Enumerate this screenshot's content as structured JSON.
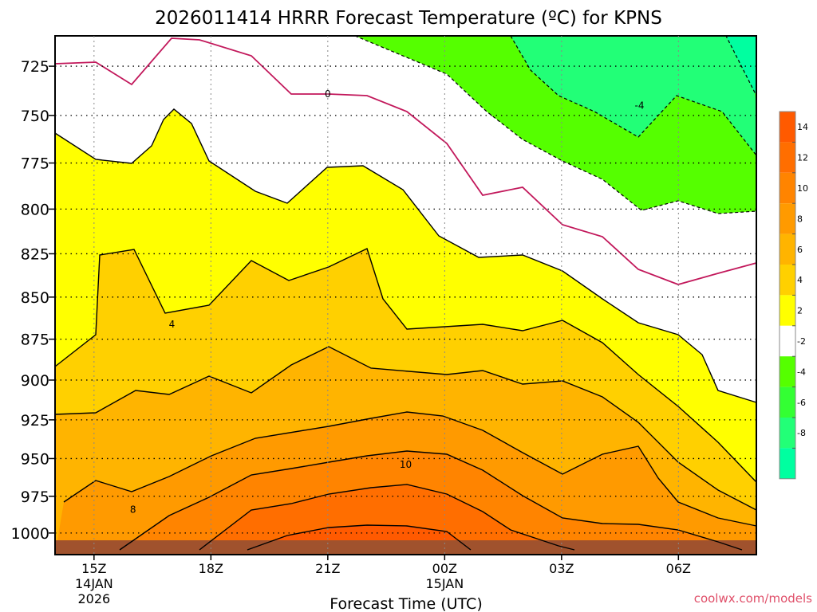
{
  "chart_data": {
    "type": "heatmap",
    "title": "2026011414 HRRR Forecast Temperature (ºC) for KPNS",
    "xlabel": "Forecast Time (UTC)",
    "ylabel": "",
    "credit": "coolwx.com/models",
    "y_ticks": [
      "725",
      "750",
      "775",
      "800",
      "825",
      "850",
      "875",
      "900",
      "925",
      "950",
      "975",
      "1000"
    ],
    "y_scale": "pressure (log)",
    "y_range_hPa": [
      710,
      1015
    ],
    "x_ticks": [
      {
        "hour": 15,
        "label": "15Z",
        "date": "14JAN",
        "year": "2026"
      },
      {
        "hour": 18,
        "label": "18Z",
        "date": "",
        "year": ""
      },
      {
        "hour": 21,
        "label": "21Z",
        "date": "",
        "year": ""
      },
      {
        "hour": 24,
        "label": "00Z",
        "date": "15JAN",
        "year": ""
      },
      {
        "hour": 27,
        "label": "03Z",
        "date": "",
        "year": ""
      },
      {
        "hour": 30,
        "label": "06Z",
        "date": "",
        "year": ""
      }
    ],
    "x_range_hours": [
      14,
      32
    ],
    "grid": true,
    "contour_labels": [
      {
        "text": "0",
        "hour": 21.0,
        "p": 739
      },
      {
        "text": "-4",
        "hour": 29.0,
        "p": 745
      },
      {
        "text": "4",
        "hour": 17.0,
        "p": 866
      },
      {
        "text": "8",
        "hour": 16.0,
        "p": 984
      },
      {
        "text": "10",
        "hour": 23.0,
        "p": 954
      }
    ],
    "colorbar": {
      "levels": [
        {
          "label": "14",
          "color": "#ff5a00"
        },
        {
          "label": "12",
          "color": "#ff6e00"
        },
        {
          "label": "10",
          "color": "#ff8400"
        },
        {
          "label": "8",
          "color": "#ff9a00"
        },
        {
          "label": "6",
          "color": "#ffb400"
        },
        {
          "label": "4",
          "color": "#ffd000"
        },
        {
          "label": "2",
          "color": "#ffff00"
        },
        {
          "label": "-2",
          "color": "#ffffff"
        },
        {
          "label": "-4",
          "color": "#55ff00"
        },
        {
          "label": "-6",
          "color": "#33ff33"
        },
        {
          "label": "-8",
          "color": "#22ff77"
        },
        {
          "label": "",
          "color": "#00ffa0"
        }
      ]
    },
    "colors": {
      "frozen_line": "#c2185b",
      "terrain": "#a0522d",
      "above_16": "#ff5a00"
    }
  }
}
